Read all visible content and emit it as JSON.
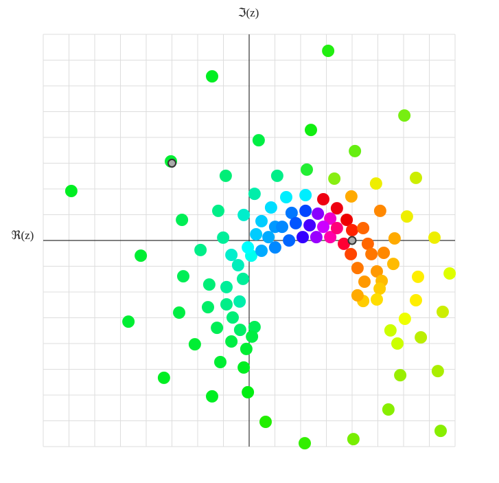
{
  "chart_data": {
    "type": "scatter",
    "x_label": "ℑ(z)",
    "y_label": "ℜ(z)",
    "xlim": [
      -8,
      8
    ],
    "ylim": [
      -8,
      8
    ],
    "xticks": [
      -8,
      -7,
      -6,
      -5,
      -4,
      -3,
      -2,
      -1,
      0,
      1,
      2,
      3,
      4,
      5,
      6,
      7,
      8
    ],
    "yticks": [
      -8,
      -7,
      -6,
      -5,
      -4,
      -3,
      -2,
      -1,
      0,
      1,
      2,
      3,
      4,
      5,
      6,
      7,
      8
    ],
    "grid": true,
    "x": [
      3.07,
      -1.44,
      6.03,
      2.4,
      0.37,
      4.11,
      -3.04,
      2.24,
      -0.91,
      1.09,
      3.31,
      4.93,
      6.48,
      -6.91,
      0.21,
      1.44,
      2.19,
      3.97,
      -1.2,
      -2.61,
      -0.21,
      0.85,
      2.88,
      3.41,
      5.09,
      6.13,
      7.2,
      -1.01,
      -1.89,
      -4.21,
      5.65,
      5.23,
      5.6,
      6.56,
      7.79,
      -2.56,
      -1.55,
      -0.88,
      -4.69,
      -2.72,
      -1.6,
      -0.88,
      -0.37,
      -0.64,
      -1.25,
      -2.11,
      -0.69,
      -0.35,
      0.21,
      0.11,
      -1.12,
      -0.11,
      -0.21,
      -3.31,
      -1.44,
      -0.05,
      0.64,
      2.16,
      4.05,
      5.41,
      5.87,
      7.33,
      7.44,
      6.67,
      5.76,
      5.49,
      6.05,
      6.48,
      7.52,
      -0.69,
      -0.43,
      -0.24,
      0.08,
      0.27,
      0.48,
      1.01,
      1.65,
      2.19,
      2.67,
      3.15,
      3.79,
      4.0,
      4.43,
      4.61,
      4.75,
      4.96,
      5.15,
      5.07,
      4.96,
      4.43,
      4.21,
      0.48,
      1.01,
      1.55,
      2.08,
      2.61,
      3.15,
      3.68,
      3.95,
      4.21,
      4.48,
      -0.05,
      0.75,
      1.28,
      1.81,
      2.35,
      2.88,
      3.41
    ],
    "values": [
      7.36,
      6.37,
      4.85,
      4.29,
      3.89,
      3.47,
      3.07,
      2.75,
      2.51,
      2.51,
      2.4,
      2.21,
      2.43,
      1.92,
      1.81,
      1.68,
      1.76,
      1.71,
      1.15,
      0.8,
      0.99,
      1.28,
      1.6,
      1.25,
      1.15,
      0.93,
      0.11,
      0.11,
      -0.37,
      -0.59,
      0.08,
      -0.48,
      -0.91,
      -1.41,
      -1.28,
      -1.39,
      -1.71,
      -1.81,
      -3.15,
      -2.8,
      -2.59,
      -2.48,
      -2.37,
      -2.99,
      -3.39,
      -4.03,
      -3.92,
      -3.47,
      -3.36,
      -3.73,
      -4.72,
      -4.21,
      -4.93,
      -5.33,
      -6.05,
      -5.89,
      -7.04,
      -7.87,
      -7.71,
      -6.56,
      -5.23,
      -5.07,
      -7.39,
      -3.76,
      -4.0,
      -3.49,
      -3.04,
      -2.32,
      -2.77,
      -0.56,
      -0.96,
      -1.49,
      -0.59,
      0.24,
      0.75,
      0.53,
      1.07,
      1.15,
      1.04,
      0.85,
      0.8,
      0.4,
      0.48,
      -0.13,
      -0.53,
      -1.2,
      -1.57,
      -1.87,
      -2.29,
      -2.35,
      -2.13,
      -0.4,
      -0.27,
      0,
      0.13,
      0.13,
      0.13,
      -0.13,
      -0.53,
      -1.07,
      -1.6,
      -0.27,
      0.13,
      0.53,
      0.67,
      0.59,
      0.53,
      0.48
    ],
    "colors": [
      "#22ee11",
      "#00ee22",
      "#77ee11",
      "#11ee11",
      "#00ee44",
      "#66ee11",
      "#00ee33",
      "#22ee33",
      "#00ee77",
      "#00ee88",
      "#88ee11",
      "#eeee00",
      "#ccee00",
      "#00ee22",
      "#00eeaa",
      "#00eeff",
      "#00eeff",
      "#ffaa00",
      "#00ee88",
      "#00ee55",
      "#00eecc",
      "#00ddff",
      "#ee0011",
      "#ee0011",
      "#ff8800",
      "#eeee00",
      "#eeee00",
      "#00ee99",
      "#00ee88",
      "#00ee33",
      "#ffaa00",
      "#ff8800",
      "#ffbb00",
      "#ffee00",
      "#ddff00",
      "#00ee55",
      "#00ee77",
      "#00ee99",
      "#00ee33",
      "#00ee44",
      "#00ee66",
      "#00ee88",
      "#00eeaa",
      "#00ee77",
      "#00ee55",
      "#00ee33",
      "#00ee44",
      "#00ee66",
      "#00ee55",
      "#00ee44",
      "#00ee33",
      "#00ee33",
      "#00ee22",
      "#00ee22",
      "#00ee22",
      "#00ee11",
      "#22ee00",
      "#33ee00",
      "#77ee00",
      "#88ee00",
      "#99ee00",
      "#aaee00",
      "#88ee00",
      "#bbee00",
      "#ccff00",
      "#ccff00",
      "#eeff00",
      "#ffee00",
      "#ccee00",
      "#00eecc",
      "#00eebb",
      "#00ee99",
      "#00ffee",
      "#00ccff",
      "#00ccff",
      "#0099ff",
      "#0077ff",
      "#0044ff",
      "#8800ff",
      "#ee00cc",
      "#ee0000",
      "#ff2200",
      "#ff6600",
      "#ff6600",
      "#ff7700",
      "#ff9900",
      "#ffbb00",
      "#ffcc00",
      "#ffdd00",
      "#ffcc00",
      "#ffaa00",
      "#00aaff",
      "#0088ff",
      "#0066ff",
      "#3300ff",
      "#9900ff",
      "#ff00aa",
      "#ff0033",
      "#ff4400",
      "#ff7700",
      "#ff9900",
      "#00ffff",
      "#00aaff",
      "#0088ff",
      "#0055ff",
      "#4400ff",
      "#cc00ff",
      "#ff0077"
    ],
    "handles": {
      "x": [
        -3,
        4
      ],
      "values": [
        3,
        0
      ],
      "color": "#aaaaaa"
    }
  }
}
